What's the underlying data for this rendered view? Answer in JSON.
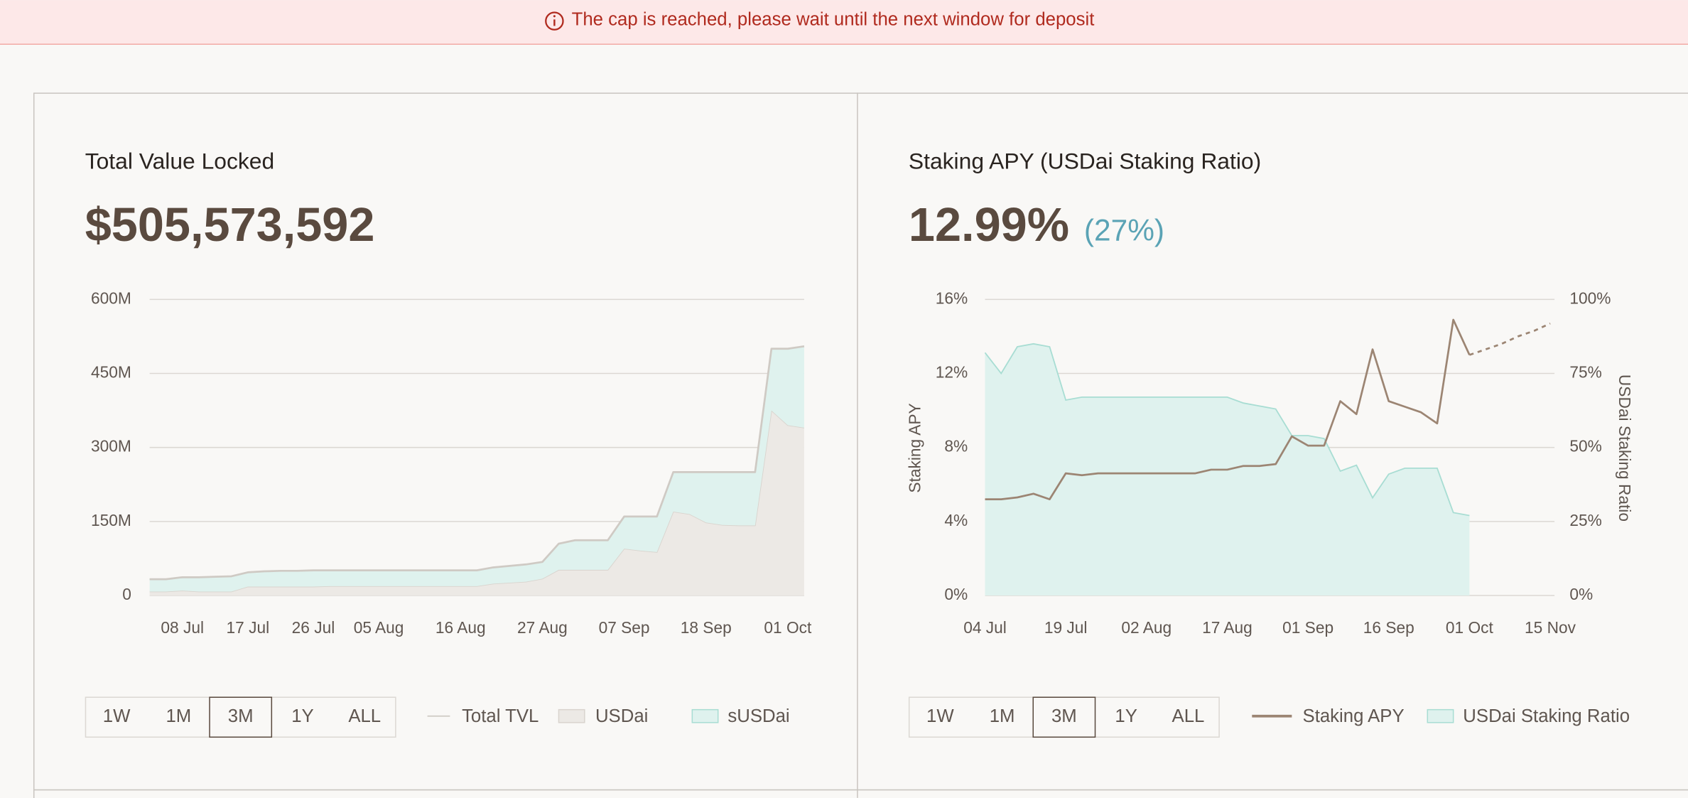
{
  "banner": {
    "text": "The cap is reached, please wait until the next window for deposit"
  },
  "chart_data": [
    {
      "type": "area",
      "title": "Total Value Locked",
      "value": "$505,573,592",
      "categories": [
        null,
        null,
        "08 Jul",
        null,
        null,
        null,
        "17 Jul",
        null,
        null,
        null,
        "26 Jul",
        null,
        null,
        null,
        "05 Aug",
        null,
        null,
        null,
        null,
        "16 Aug",
        null,
        null,
        null,
        null,
        "27 Aug",
        null,
        null,
        null,
        null,
        "07 Sep",
        null,
        null,
        null,
        null,
        "18 Sep",
        null,
        null,
        null,
        null,
        "01 Oct",
        null
      ],
      "series": [
        {
          "name": "Total TVL",
          "kind": "line",
          "color": "#cfcac4",
          "values": [
            33,
            33,
            37,
            37,
            38,
            39,
            47,
            49,
            50,
            50,
            51,
            51,
            51,
            51,
            51,
            51,
            51,
            51,
            51,
            51,
            51,
            57,
            60,
            63,
            68,
            105,
            112,
            112,
            112,
            160,
            160,
            160,
            250,
            250,
            250,
            250,
            250,
            250,
            500,
            500,
            505
          ]
        },
        {
          "name": "USDai",
          "kind": "area",
          "color": "#ece9e5",
          "stroke": "#d9d4ce",
          "values": [
            8,
            8,
            10,
            8,
            8,
            8,
            18,
            18,
            18,
            18,
            18,
            19,
            19,
            19,
            19,
            19,
            19,
            19,
            19,
            19,
            19,
            24,
            26,
            28,
            34,
            52,
            52,
            52,
            52,
            95,
            91,
            88,
            170,
            165,
            148,
            143,
            142,
            142,
            375,
            345,
            340
          ]
        },
        {
          "name": "sUSDai",
          "kind": "area",
          "color": "#dff2ee",
          "stroke": "#a8ddd3",
          "values": [
            25,
            25,
            27,
            29,
            30,
            31,
            29,
            31,
            32,
            32,
            33,
            32,
            32,
            32,
            32,
            32,
            32,
            32,
            32,
            32,
            32,
            33,
            34,
            35,
            34,
            53,
            60,
            60,
            60,
            65,
            69,
            72,
            80,
            85,
            102,
            107,
            108,
            108,
            125,
            155,
            165
          ]
        }
      ],
      "ylim": [
        0,
        600
      ],
      "yticks": [
        0,
        {
          "value": 150,
          "label": "150M"
        },
        {
          "value": 300,
          "label": "300M"
        },
        {
          "value": 450,
          "label": "450M"
        },
        {
          "value": 600,
          "label": "600M"
        }
      ],
      "grid": true,
      "ranges": [
        "1W",
        "1M",
        "3M",
        "1Y",
        "ALL"
      ],
      "selected_range": 2
    },
    {
      "type": "line",
      "title": "Staking APY (USDai Staking Ratio)",
      "value": "12.99%",
      "subvalue": "(27%)",
      "ylabel": "Staking APY",
      "y2label": "USDai Staking Ratio",
      "categories": [
        "04 Jul",
        null,
        null,
        null,
        null,
        "19 Jul",
        null,
        null,
        null,
        null,
        "02 Aug",
        null,
        null,
        null,
        null,
        "17 Aug",
        null,
        null,
        null,
        null,
        "01 Sep",
        null,
        null,
        null,
        null,
        "16 Sep",
        null,
        null,
        null,
        null,
        "01 Oct",
        null,
        null,
        null,
        null,
        "15 Nov"
      ],
      "series": [
        {
          "name": "Staking APY",
          "kind": "line",
          "color": "#9c8573",
          "values": [
            5.2,
            5.2,
            5.3,
            5.5,
            5.2,
            6.6,
            6.5,
            6.6,
            6.6,
            6.6,
            6.6,
            6.6,
            6.6,
            6.6,
            6.8,
            6.8,
            7.0,
            7.0,
            7.1,
            8.6,
            8.1,
            8.1,
            10.5,
            9.8,
            13.3,
            10.5,
            10.2,
            9.9,
            9.3,
            14.9,
            13.0,
            null,
            null,
            null,
            null,
            null
          ]
        },
        {
          "kind": "line",
          "dashed": true,
          "color": "#9c8573",
          "values": [
            null,
            null,
            null,
            null,
            null,
            null,
            null,
            null,
            null,
            null,
            null,
            null,
            null,
            null,
            null,
            null,
            null,
            null,
            null,
            null,
            null,
            null,
            null,
            null,
            null,
            null,
            null,
            null,
            null,
            null,
            13.0,
            13.3,
            13.6,
            14.0,
            14.3,
            14.7
          ]
        },
        {
          "name": "USDai Staking Ratio",
          "kind": "area",
          "axis": "y2",
          "color": "#dff2ee",
          "stroke": "#a8ddd3",
          "values": [
            82,
            75,
            84,
            85,
            84,
            66,
            67,
            67,
            67,
            67,
            67,
            67,
            67,
            67,
            67,
            67,
            65,
            64,
            63,
            54,
            54,
            53,
            42,
            44,
            33,
            41,
            43,
            43,
            43,
            28,
            27,
            null,
            null,
            null,
            null,
            null
          ]
        }
      ],
      "ylim": [
        0,
        16
      ],
      "yticks": [
        {
          "value": 0,
          "label": "0%"
        },
        {
          "value": 4,
          "label": "4%"
        },
        {
          "value": 8,
          "label": "8%"
        },
        {
          "value": 12,
          "label": "12%"
        },
        {
          "value": 16,
          "label": "16%"
        }
      ],
      "y2lim": [
        0,
        100
      ],
      "y2ticks": [
        {
          "value": 0,
          "label": "0%"
        },
        {
          "value": 25,
          "label": "25%"
        },
        {
          "value": 50,
          "label": "50%"
        },
        {
          "value": 75,
          "label": "75%"
        },
        {
          "value": 100,
          "label": "100%"
        }
      ],
      "grid": true,
      "ranges": [
        "1W",
        "1M",
        "3M",
        "1Y",
        "ALL"
      ],
      "selected_range": 2
    }
  ]
}
